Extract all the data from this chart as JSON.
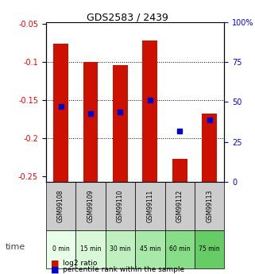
{
  "title": "GDS2583 / 2439",
  "samples": [
    "GSM99108",
    "GSM99109",
    "GSM99110",
    "GSM99111",
    "GSM99112",
    "GSM99113"
  ],
  "time_labels": [
    "0 min",
    "15 min",
    "30 min",
    "45 min",
    "60 min",
    "75 min"
  ],
  "log2_ratios": [
    -0.077,
    -0.1,
    -0.105,
    -0.072,
    -0.228,
    -0.168
  ],
  "log2_bottom": [
    -0.258,
    -0.258,
    -0.258,
    -0.258,
    -0.258,
    -0.258
  ],
  "percentile_ranks": [
    47,
    43,
    44,
    51,
    32,
    39
  ],
  "ylim_left": [
    -0.258,
    -0.048
  ],
  "ylim_right": [
    0,
    100
  ],
  "yticks_left": [
    -0.25,
    -0.2,
    -0.15,
    -0.1,
    -0.05
  ],
  "yticks_right": [
    0,
    25,
    50,
    75,
    100
  ],
  "bar_color": "#cc1100",
  "dot_color": "#0000cc",
  "grid_color": "#000000",
  "time_bg_colors": [
    "#e8ffe8",
    "#d8f8d8",
    "#c0f0c0",
    "#a8e8a8",
    "#88dd88",
    "#66cc66"
  ],
  "sample_bg_color": "#cccccc",
  "legend_bar_label": "log2 ratio",
  "legend_dot_label": "percentile rank within the sample",
  "time_label": "time"
}
